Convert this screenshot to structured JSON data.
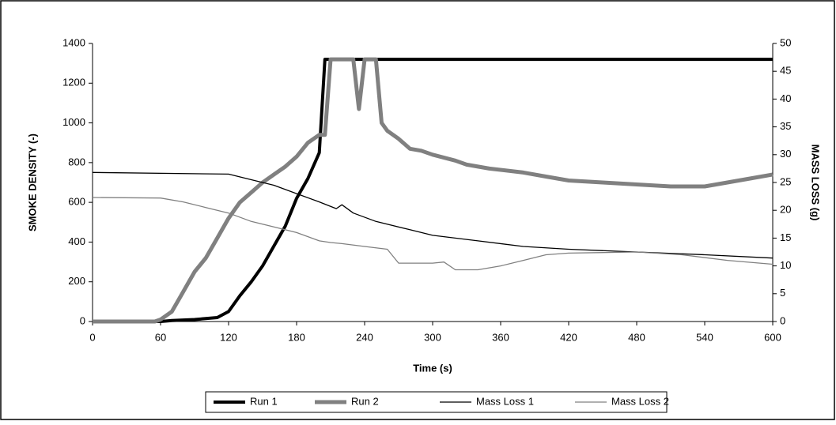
{
  "chart_data": {
    "type": "line",
    "xlabel": "Time (s)",
    "ylabel": "SMOKE DENSITY (-)",
    "y2label": "MASS LOSS (g)",
    "xlim": [
      0,
      600
    ],
    "xticks": [
      0,
      60,
      120,
      180,
      240,
      300,
      360,
      420,
      480,
      540,
      600
    ],
    "ylim": [
      0,
      1400
    ],
    "yticks": [
      0,
      200,
      400,
      600,
      800,
      1000,
      1200,
      1400
    ],
    "y2lim": [
      0,
      50
    ],
    "y2ticks": [
      0,
      5,
      10,
      15,
      20,
      25,
      30,
      35,
      40,
      45,
      50
    ],
    "legend": "bottom",
    "series": [
      {
        "name": "Run 1",
        "color": "#000000",
        "width": 4,
        "x": [
          0,
          60,
          70,
          90,
          110,
          120,
          130,
          140,
          150,
          160,
          170,
          180,
          190,
          200,
          205,
          600
        ],
        "values": [
          0,
          0,
          5,
          10,
          20,
          50,
          130,
          200,
          280,
          380,
          480,
          620,
          720,
          850,
          1320,
          1320
        ]
      },
      {
        "name": "Run 2",
        "color": "#808080",
        "width": 5,
        "x": [
          0,
          55,
          60,
          70,
          80,
          90,
          100,
          110,
          120,
          130,
          140,
          150,
          160,
          170,
          180,
          190,
          200,
          205,
          210,
          230,
          235,
          240,
          250,
          255,
          260,
          270,
          280,
          290,
          300,
          320,
          330,
          350,
          380,
          400,
          420,
          450,
          480,
          510,
          540,
          560,
          580,
          600
        ],
        "values": [
          0,
          0,
          10,
          50,
          150,
          250,
          320,
          420,
          520,
          600,
          650,
          700,
          740,
          780,
          830,
          900,
          940,
          940,
          1320,
          1320,
          1070,
          1320,
          1320,
          1000,
          960,
          920,
          870,
          860,
          840,
          810,
          790,
          770,
          750,
          730,
          710,
          700,
          690,
          680,
          680,
          700,
          720,
          740
        ]
      },
      {
        "name": "Mass Loss 1",
        "color": "#000000",
        "width": 1.3,
        "axis": "y2",
        "x": [
          0,
          120,
          140,
          160,
          180,
          200,
          215,
          220,
          230,
          250,
          280,
          300,
          340,
          380,
          420,
          480,
          540,
          600
        ],
        "values": [
          26.8,
          26.5,
          25.5,
          24.5,
          23,
          21.5,
          20.3,
          21,
          19.5,
          18,
          16.5,
          15.5,
          14.5,
          13.5,
          13,
          12.5,
          12,
          11.4
        ]
      },
      {
        "name": "Mass Loss 2",
        "color": "#808080",
        "width": 1.3,
        "axis": "y2",
        "x": [
          0,
          60,
          80,
          100,
          120,
          140,
          160,
          180,
          200,
          210,
          220,
          240,
          260,
          270,
          300,
          310,
          320,
          340,
          360,
          380,
          400,
          420,
          480,
          520,
          560,
          600
        ],
        "values": [
          22.3,
          22.2,
          21.5,
          20.5,
          19.5,
          18,
          17,
          16,
          14.5,
          14.2,
          14,
          13.5,
          13,
          10.5,
          10.5,
          10.7,
          9.3,
          9.3,
          10,
          11,
          12,
          12.3,
          12.5,
          12,
          11,
          10.3
        ]
      }
    ]
  }
}
